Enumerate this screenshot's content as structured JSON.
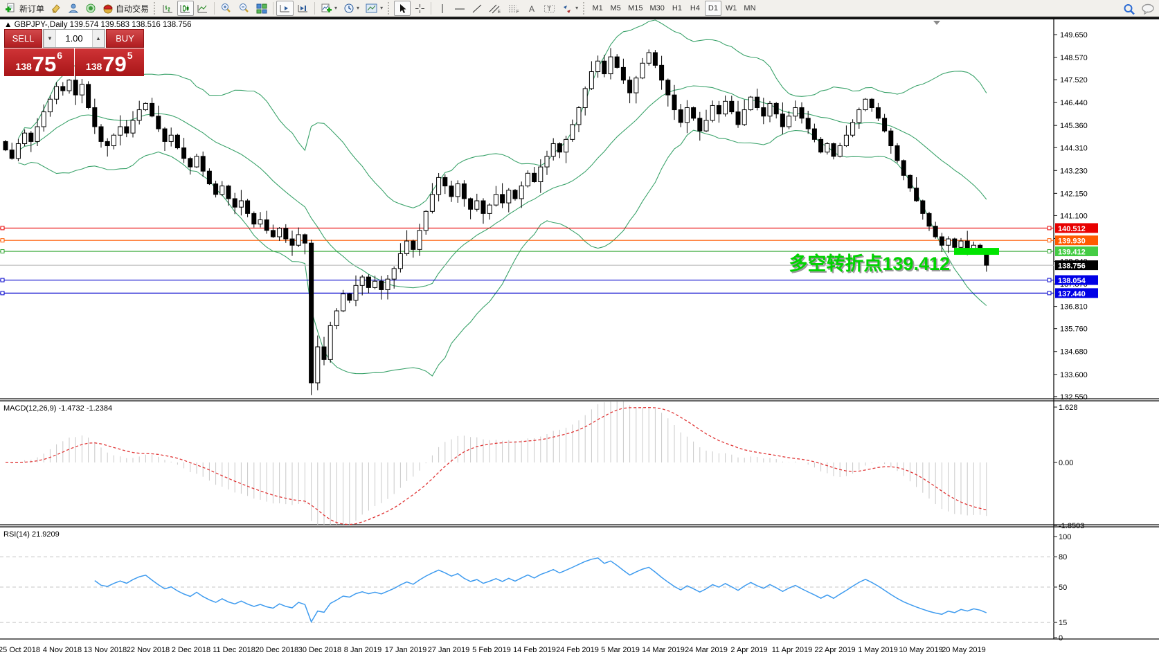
{
  "toolbar": {
    "new_order_label": "新订单",
    "autotrading_label": "自动交易",
    "timeframes": [
      "M1",
      "M5",
      "M15",
      "M30",
      "H1",
      "H4",
      "D1",
      "W1",
      "MN"
    ],
    "active_timeframe": "D1"
  },
  "trade_panel": {
    "sell_label": "SELL",
    "buy_label": "BUY",
    "volume": "1.00",
    "spin_down": "▼",
    "spin_up": "▲",
    "sell_prefix": "138",
    "sell_big": "75",
    "sell_sup": "6",
    "buy_prefix": "138",
    "buy_big": "79",
    "buy_sup": "5"
  },
  "chart_data": {
    "type": "candlestick",
    "symbol_line": "▲ GBPJPY-,Daily  139.574 139.583 138.516 138.756",
    "quote": {
      "open": 139.574,
      "high": 139.583,
      "low": 138.516,
      "close": 138.756
    },
    "x_labels": [
      "25 Oct 2018",
      "4 Nov 2018",
      "13 Nov 2018",
      "22 Nov 2018",
      "2 Dec 2018",
      "11 Dec 2018",
      "20 Dec 2018",
      "30 Dec 2018",
      "8 Jan 2019",
      "17 Jan 2019",
      "27 Jan 2019",
      "5 Feb 2019",
      "14 Feb 2019",
      "24 Feb 2019",
      "5 Mar 2019",
      "14 Mar 2019",
      "24 Mar 2019",
      "2 Apr 2019",
      "11 Apr 2019",
      "22 Apr 2019",
      "1 May 2019",
      "10 May 2019",
      "20 May 2019"
    ],
    "closes": [
      144.2,
      143.8,
      144.5,
      145.0,
      144.6,
      145.3,
      146.0,
      146.6,
      147.2,
      147.0,
      147.5,
      146.8,
      147.3,
      146.2,
      145.3,
      144.6,
      144.4,
      144.9,
      145.3,
      145.0,
      145.6,
      146.1,
      146.4,
      145.8,
      145.2,
      144.6,
      144.9,
      144.3,
      143.8,
      143.4,
      143.9,
      143.2,
      142.6,
      142.1,
      142.5,
      141.9,
      141.5,
      141.8,
      141.2,
      140.7,
      140.9,
      140.4,
      140.1,
      140.5,
      140.0,
      139.7,
      140.2,
      139.8,
      133.2,
      134.9,
      134.3,
      135.9,
      136.6,
      137.4,
      137.1,
      137.8,
      138.2,
      137.7,
      138.0,
      137.6,
      138.1,
      138.6,
      139.3,
      139.9,
      139.5,
      140.4,
      141.3,
      142.1,
      142.9,
      142.5,
      142.0,
      142.6,
      141.9,
      141.4,
      141.8,
      141.2,
      141.6,
      142.1,
      141.7,
      142.3,
      141.9,
      142.5,
      143.1,
      142.7,
      143.4,
      143.9,
      144.5,
      144.1,
      144.7,
      145.4,
      146.2,
      147.1,
      147.9,
      148.4,
      147.8,
      148.6,
      148.1,
      147.5,
      146.9,
      147.6,
      148.3,
      148.8,
      148.2,
      147.5,
      146.8,
      146.1,
      145.5,
      146.2,
      145.7,
      145.1,
      145.6,
      146.3,
      145.9,
      146.5,
      146.0,
      145.4,
      146.1,
      146.7,
      146.2,
      145.8,
      146.4,
      145.9,
      145.3,
      145.8,
      146.2,
      145.7,
      145.2,
      144.7,
      144.1,
      144.5,
      143.9,
      144.4,
      144.9,
      145.5,
      146.1,
      146.6,
      146.2,
      145.7,
      145.1,
      144.4,
      143.7,
      143.0,
      142.4,
      141.8,
      141.2,
      140.6,
      140.1,
      139.7,
      140.0,
      139.6,
      139.9,
      139.5,
      139.7,
      139.4,
      138.756
    ],
    "first_open": 144.6,
    "low_overrides": {
      "48": 132.62,
      "154": 138.45
    },
    "high_overrides": {
      "101": 148.95
    },
    "y_ticks": [
      149.65,
      148.57,
      147.52,
      146.44,
      145.36,
      144.31,
      143.23,
      142.15,
      141.1,
      140.02,
      138.94,
      137.87,
      136.81,
      135.76,
      134.68,
      133.6,
      132.55
    ],
    "levels": [
      {
        "price": 140.512,
        "label": "140.512",
        "color": "#e80000",
        "tag_bg": "#e80000"
      },
      {
        "price": 139.93,
        "label": "139.930",
        "color": "#ff5a00",
        "tag_bg": "#ff5a00"
      },
      {
        "price": 139.412,
        "label": "139.412",
        "color": "#2fa42f",
        "tag_bg": "#44cc44"
      },
      {
        "price": 138.756,
        "label": "138.756",
        "color": "#b4b4b4",
        "tag_bg": "#000000",
        "current": true
      },
      {
        "price": 138.054,
        "label": "138.054",
        "color": "#0000cc",
        "tag_bg": "#0000e6"
      },
      {
        "price": 137.44,
        "label": "137.440",
        "color": "#0000cc",
        "tag_bg": "#0000e6"
      }
    ],
    "bollinger": {
      "period": 20,
      "deviation": 2,
      "color": "#3ba36b"
    },
    "macd": {
      "label": "MACD(12,26,9) -1.4732 -1.2384",
      "fast": 12,
      "slow": 26,
      "signal": 9,
      "hist_color": "#c9c9c9",
      "signal_color": "#e03535",
      "axis_labels": [
        {
          "v": 1.628,
          "t": "1.628"
        },
        {
          "v": 0,
          "t": "0.00"
        },
        {
          "v": -1.8503,
          "t": "-1.8503"
        }
      ]
    },
    "rsi": {
      "label": "RSI(14) 21.9209",
      "period": 14,
      "color": "#3e9bef",
      "levels": [
        80,
        50,
        15
      ],
      "axis_labels": [
        {
          "v": 100,
          "t": "100"
        },
        {
          "v": 80,
          "t": "80"
        },
        {
          "v": 50,
          "t": "50"
        },
        {
          "v": 15,
          "t": "15"
        },
        {
          "v": 0,
          "t": "0"
        }
      ]
    },
    "annotation": {
      "text": "多空转折点139.412",
      "color": "#00d400",
      "shadow": "#9a9a9a"
    },
    "highlight_box": {
      "color": "#00e400",
      "price": 139.412
    }
  }
}
